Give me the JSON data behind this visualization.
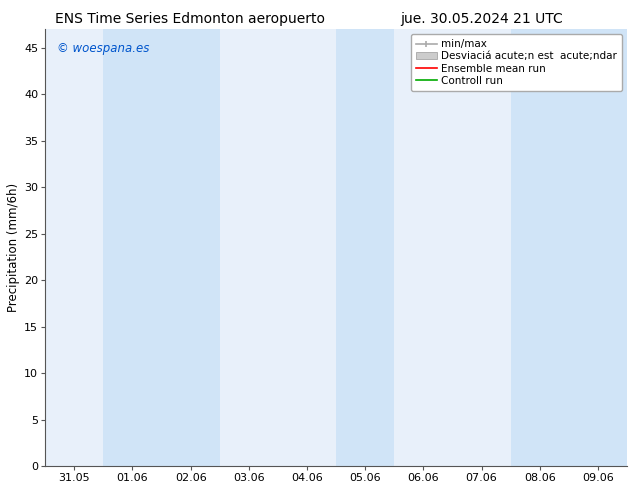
{
  "title_left": "ENS Time Series Edmonton aeropuerto",
  "title_right": "jue. 30.05.2024 21 UTC",
  "ylabel": "Precipitation (mm/6h)",
  "ylim": [
    0,
    47
  ],
  "yticks": [
    0,
    5,
    10,
    15,
    20,
    25,
    30,
    35,
    40,
    45
  ],
  "xtick_labels": [
    "31.05",
    "01.06",
    "02.06",
    "03.06",
    "04.06",
    "05.06",
    "06.06",
    "07.06",
    "08.06",
    "09.06"
  ],
  "watermark": "© woespana.es",
  "watermark_color": "#0055cc",
  "bg_color": "#ffffff",
  "plot_bg_color": "#e8f0fa",
  "band_color": "#d0e4f7",
  "band_positions": [
    1,
    2,
    5,
    8,
    9
  ],
  "title_fontsize": 10,
  "tick_fontsize": 8,
  "ylabel_fontsize": 8.5,
  "watermark_fontsize": 8.5,
  "legend_fontsize": 7.5,
  "minmax_color": "#aaaaaa",
  "std_color": "#cccccc",
  "ensemble_color": "#ff0000",
  "control_color": "#00aa00"
}
